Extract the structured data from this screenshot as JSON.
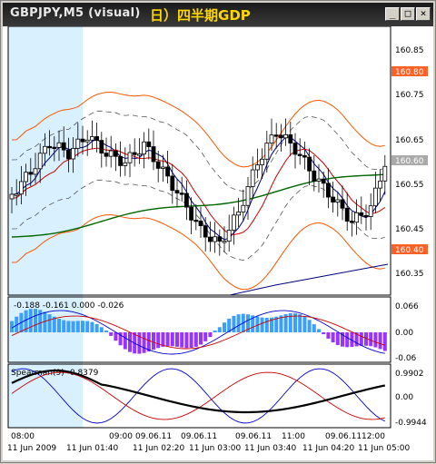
{
  "window": {
    "title": "GBPJPY,M5 (visual)",
    "overlay_title": "日）四半期GDP",
    "buttons": {
      "minimize": "_",
      "maximize": "□",
      "close": "×"
    }
  },
  "price_panel": {
    "y_ticks": [
      "160.85",
      "160.75",
      "160.65",
      "160.55",
      "160.45",
      "160.35"
    ],
    "price_labels": {
      "upper": "160.80",
      "current": "160.60",
      "lower": "160.40"
    }
  },
  "macd_panel": {
    "header": "-0.188 -0.161 0.000 -0.026",
    "y_ticks": [
      "0.066",
      "0.00",
      "-0.06"
    ]
  },
  "spearman_panel": {
    "header": "Spearman(9) -0.8379",
    "y_ticks": [
      "0.9902",
      "0.00",
      "-0.9944"
    ]
  },
  "time_axis": {
    "top_row": [
      "08:00",
      "09:00",
      "09.06.11",
      "09.06.11",
      "09.06.11",
      "11:00",
      "09.06.11",
      "12:00"
    ],
    "bottom_row": [
      "11 Jun 2009",
      "11 Jun 01:40",
      "09.06.11",
      "11 Jun 02:20",
      "11 Jun 03:00",
      "11 Jun 03:40",
      "11 Jun 04:20",
      "11 Jun 05:00"
    ]
  },
  "colors": {
    "up_candle": "#ffffff",
    "down_candle": "#000000",
    "macd_up": "#3aa0ff",
    "macd_down": "#9933ff",
    "highlight": "#d9f1ff",
    "envelope": "#ff5500",
    "ma_green": "#006600",
    "ma_navy": "#000080"
  }
}
